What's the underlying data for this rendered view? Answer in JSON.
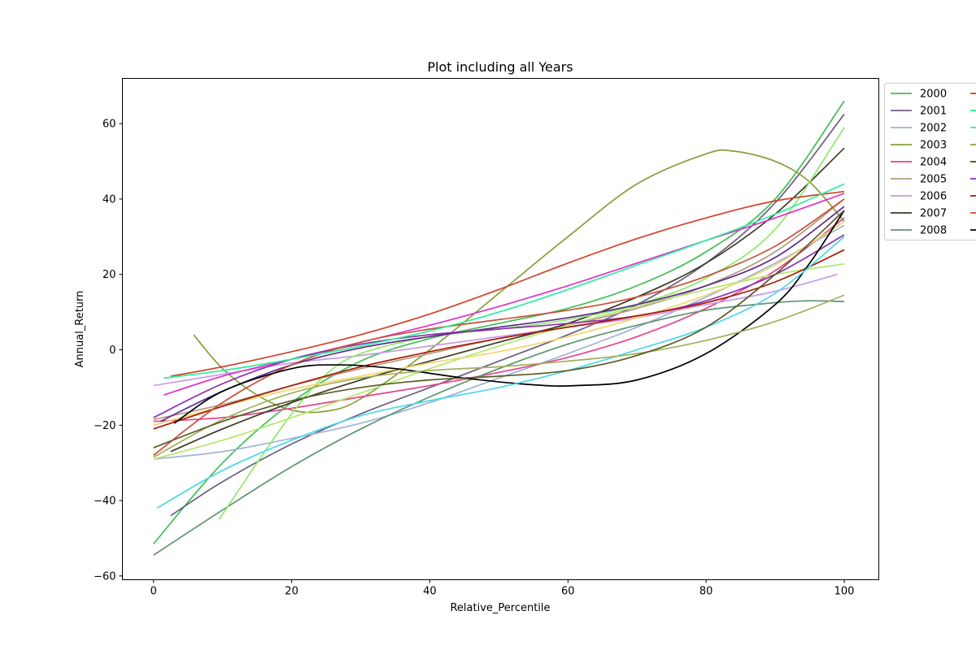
{
  "chart_data": {
    "type": "line",
    "title": "Plot including all Years",
    "xlabel": "Relative_Percentile",
    "ylabel": "Annual_Return",
    "xlim": [
      -4.5,
      105
    ],
    "ylim": [
      -61,
      72
    ],
    "xticks": [
      0,
      20,
      40,
      60,
      80,
      100
    ],
    "yticks": [
      -60,
      -40,
      -20,
      0,
      20,
      40,
      60
    ],
    "grid": false,
    "legend_position": "outside top-right (clipped)",
    "series": [
      {
        "name": "2000",
        "color": "#3fbf52",
        "x": [
          0,
          10,
          20,
          30,
          40,
          50,
          60,
          70,
          80,
          90,
          100
        ],
        "y": [
          -51.5,
          -30,
          -14,
          -3,
          3,
          7,
          11,
          17,
          26,
          40,
          66
        ]
      },
      {
        "name": "2001",
        "color": "#6b5f7e",
        "x": [
          2.5,
          10,
          20,
          30,
          40,
          50,
          60,
          70,
          80,
          90,
          100
        ],
        "y": [
          -44,
          -35,
          -25,
          -17,
          -10,
          -3,
          4,
          12,
          23,
          39,
          62.5
        ]
      },
      {
        "name": "2002",
        "color": "#9fb3d6",
        "x": [
          0,
          10,
          20,
          30,
          40,
          50,
          60,
          70,
          80,
          90,
          100
        ],
        "y": [
          -29,
          -27,
          -23.5,
          -19.5,
          -14,
          -7.5,
          -1,
          6,
          14,
          23,
          33
        ]
      },
      {
        "name": "2003",
        "color": "#86a03b",
        "x": [
          5.8,
          10,
          15,
          20,
          25,
          30,
          40,
          50,
          60,
          70,
          80,
          84,
          90,
          95,
          100
        ],
        "y": [
          4,
          -5,
          -12,
          -16,
          -16.3,
          -13,
          0,
          15,
          30,
          44,
          52,
          52.7,
          50,
          44.5,
          34
        ]
      },
      {
        "name": "2004",
        "color": "#e8418a",
        "x": [
          0,
          10,
          20,
          30,
          40,
          50,
          60,
          70,
          80,
          90,
          100
        ],
        "y": [
          -19,
          -18,
          -15.5,
          -12.5,
          -9.5,
          -6,
          -2,
          3.5,
          11,
          21,
          35
        ]
      },
      {
        "name": "2005",
        "color": "#b49a80",
        "x": [
          0,
          10,
          20,
          30,
          40,
          50,
          60,
          70,
          80,
          90,
          100
        ],
        "y": [
          -18.5,
          -14.5,
          -9.5,
          -5,
          -1,
          3,
          6.5,
          11,
          17,
          26,
          40
        ]
      },
      {
        "name": "2006",
        "color": "#c79be8",
        "x": [
          0,
          10,
          20,
          30,
          40,
          50,
          60,
          70,
          80,
          90,
          99
        ],
        "y": [
          -9.5,
          -6.5,
          -3.5,
          -1.5,
          1,
          3.5,
          6,
          8.5,
          12,
          15.5,
          20
        ]
      },
      {
        "name": "2007",
        "color": "#3c3a26",
        "x": [
          2.5,
          10,
          20,
          30,
          40,
          50,
          60,
          70,
          80,
          90,
          100
        ],
        "y": [
          -27,
          -21,
          -14,
          -8,
          -3,
          2,
          7,
          14,
          23,
          36,
          53.5
        ]
      },
      {
        "name": "2008",
        "color": "#5d9470",
        "x": [
          0,
          10,
          20,
          30,
          40,
          50,
          60,
          70,
          80,
          90,
          95,
          100
        ],
        "y": [
          -54.5,
          -42.5,
          -31,
          -21,
          -12.5,
          -5,
          1.5,
          6.5,
          10.5,
          12.5,
          13,
          12.8
        ]
      },
      {
        "name": "",
        "color": "#8ee86a",
        "x": [
          9.5,
          15,
          20,
          25,
          30,
          40,
          50,
          60,
          70,
          80,
          90,
          100
        ],
        "y": [
          -45,
          -30,
          -17,
          -6.5,
          -1,
          3.5,
          5.5,
          8,
          12,
          19,
          32,
          59
        ]
      },
      {
        "name": "",
        "color": "#f5d56a",
        "x": [
          0,
          10,
          20,
          30,
          40,
          50,
          60,
          70,
          80,
          90,
          100
        ],
        "y": [
          -20,
          -15,
          -10.5,
          -7,
          -3.5,
          -0.5,
          3.5,
          8.5,
          14.5,
          22.5,
          34
        ]
      },
      {
        "name": "",
        "color": "#b3e86b",
        "x": [
          0,
          10,
          20,
          30,
          40,
          50,
          60,
          70,
          80,
          90,
          100
        ],
        "y": [
          -29,
          -24,
          -18,
          -11.5,
          -5,
          1,
          6.5,
          11.5,
          16,
          20,
          22.8
        ]
      },
      {
        "name": "",
        "color": "#5e2a8a",
        "x": [
          1,
          10,
          20,
          30,
          40,
          50,
          60,
          70,
          80,
          90,
          100
        ],
        "y": [
          -19,
          -11,
          -4,
          0.5,
          3.5,
          6,
          8.5,
          12,
          17,
          24.5,
          38
        ]
      },
      {
        "name": "",
        "color": "#e030c8",
        "x": [
          1.5,
          10,
          20,
          30,
          40,
          50,
          60,
          70,
          80,
          90,
          100
        ],
        "y": [
          -12,
          -7,
          -2.5,
          2,
          6.5,
          11.5,
          17,
          23,
          29,
          35,
          41.5
        ]
      },
      {
        "name": "",
        "color": "#8a2fb0",
        "x": [
          0,
          10,
          20,
          30,
          40,
          50,
          60,
          70,
          80,
          90,
          100
        ],
        "y": [
          -18,
          -9,
          -2.5,
          1.5,
          4,
          5.5,
          7,
          9,
          13,
          20,
          30.5
        ]
      },
      {
        "name": "",
        "color": "#a81a06",
        "x": [
          0,
          10,
          20,
          30,
          40,
          50,
          60,
          70,
          80,
          90,
          100
        ],
        "y": [
          -21,
          -15,
          -9.5,
          -4.5,
          -0.5,
          3,
          6,
          9,
          12.5,
          18,
          26.5
        ]
      },
      {
        "name": "",
        "color": "#c8503a",
        "x": [
          0,
          10,
          20,
          30,
          40,
          50,
          60,
          70,
          80,
          90,
          100
        ],
        "y": [
          -28,
          -14,
          -4,
          2,
          5.5,
          8,
          10.5,
          14,
          19.5,
          27.5,
          40
        ]
      },
      {
        "name": "",
        "color": "#000000",
        "x": [
          3,
          10,
          20,
          27,
          35,
          45,
          55,
          61,
          70,
          80,
          90,
          95,
          100
        ],
        "y": [
          -19.5,
          -11,
          -5,
          -4,
          -5,
          -7.5,
          -9.3,
          -9.5,
          -8,
          -1,
          12,
          23,
          37
        ]
      },
      {
        "name": "",
        "color": "#d2412b",
        "x": [
          2.5,
          10,
          20,
          30,
          40,
          50,
          60,
          70,
          80,
          90,
          100
        ],
        "y": [
          -7,
          -4.5,
          -0.5,
          4,
          9.5,
          16,
          23,
          29.5,
          35,
          39.5,
          42
        ]
      },
      {
        "name": "",
        "color": "#2aef9a",
        "x": [
          1.5,
          10,
          20,
          30,
          40,
          50,
          60,
          70,
          80,
          90,
          100
        ],
        "y": [
          -7.5,
          -5.5,
          -2.5,
          1,
          5,
          10,
          16,
          22.5,
          29,
          36,
          44
        ]
      },
      {
        "name": "",
        "color": "#4ad8e8",
        "x": [
          0.5,
          10,
          20,
          30,
          40,
          50,
          60,
          70,
          80,
          90,
          100
        ],
        "y": [
          -42,
          -32,
          -24,
          -17.5,
          -13.5,
          -10,
          -5.5,
          0,
          6,
          15,
          30
        ]
      },
      {
        "name": "",
        "color": "#a0b05a",
        "x": [
          0,
          10,
          20,
          30,
          40,
          50,
          60,
          70,
          80,
          90,
          100
        ],
        "y": [
          -28.5,
          -18.5,
          -11.5,
          -7.5,
          -5.5,
          -4.5,
          -3,
          -1,
          2.5,
          7.5,
          14.5
        ]
      },
      {
        "name": "",
        "color": "#5a5a28",
        "x": [
          0,
          10,
          20,
          30,
          40,
          50,
          60,
          70,
          80,
          90,
          100
        ],
        "y": [
          -26,
          -19,
          -13.5,
          -10,
          -8,
          -7,
          -5.5,
          -1.5,
          6,
          20,
          37
        ]
      }
    ]
  }
}
